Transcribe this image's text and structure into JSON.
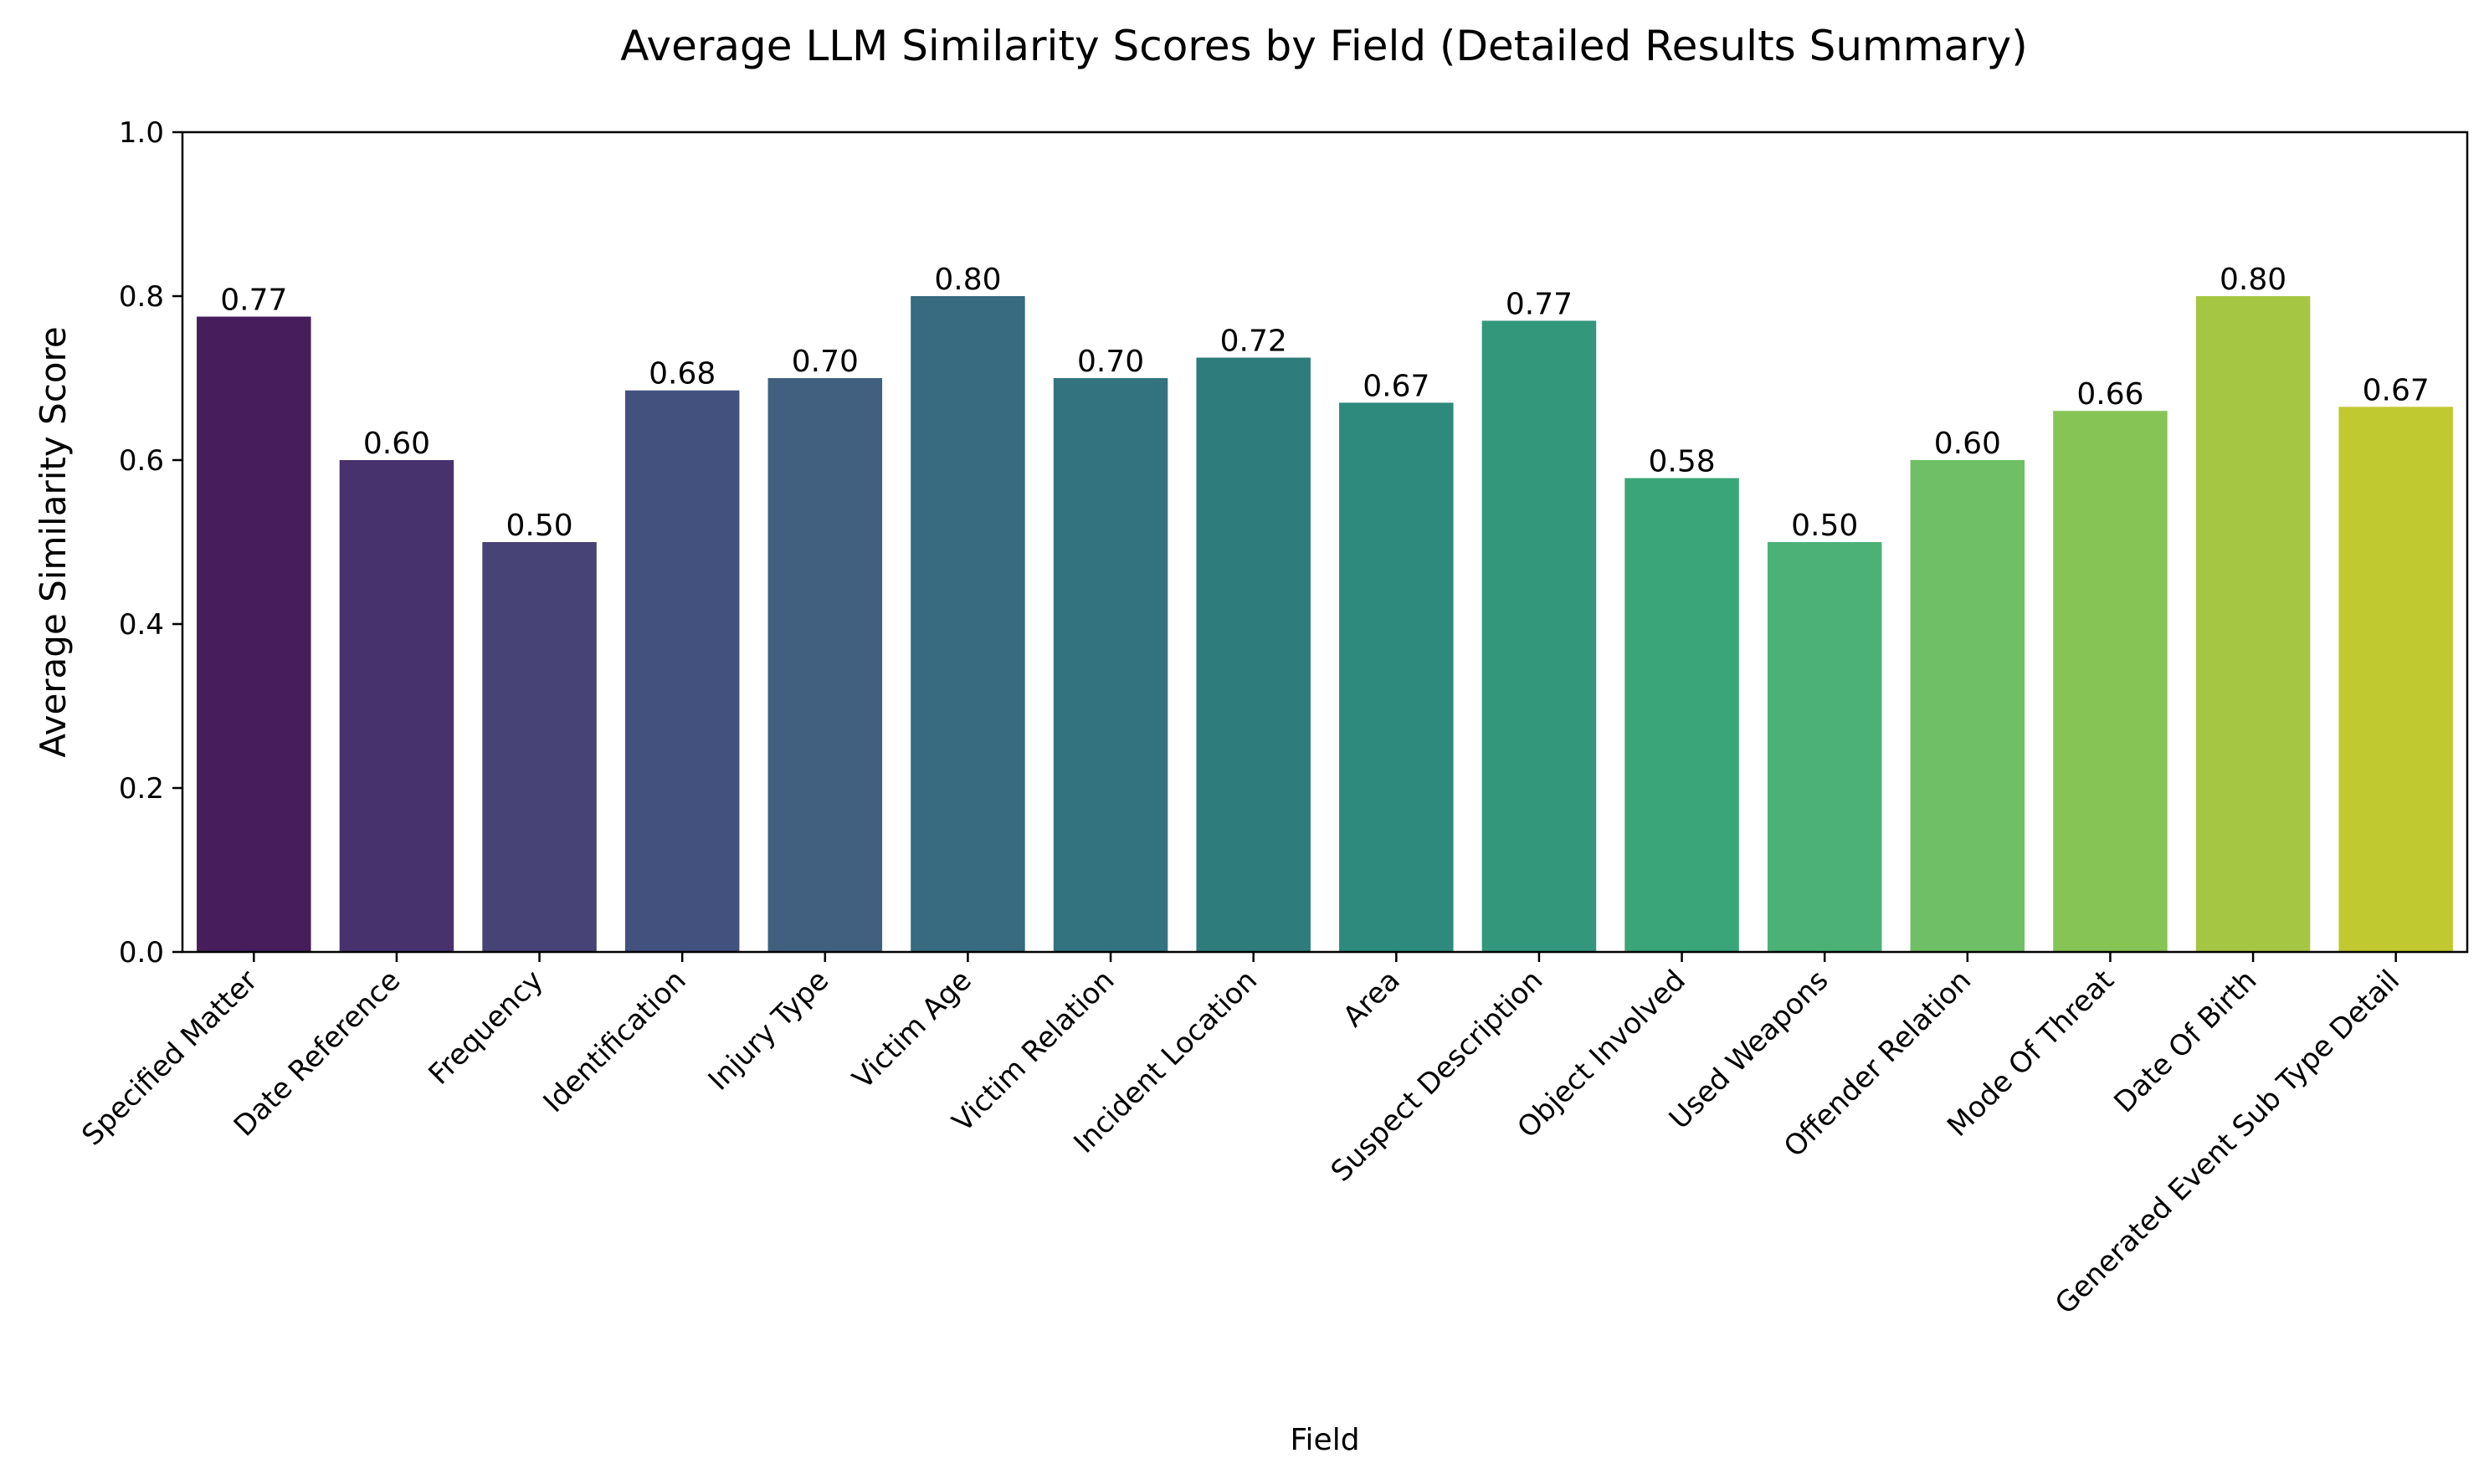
{
  "chart_data": {
    "type": "bar",
    "title": "Average LLM Similarity Scores by Field (Detailed Results Summary)",
    "xlabel": "Field",
    "ylabel": "Average Similarity Score",
    "ylim": [
      0,
      1.0
    ],
    "yticks": [
      "0.0",
      "0.2",
      "0.4",
      "0.6",
      "0.8",
      "1.0"
    ],
    "grid": false,
    "legend": "none",
    "categories": [
      "Specified Matter",
      "Date Reference",
      "Frequency",
      "Identification",
      "Injury Type",
      "Victim Age",
      "Victim Relation",
      "Incident Location",
      "Area",
      "Suspect Description",
      "Object Involved",
      "Used Weapons",
      "Offender Relation",
      "Mode Of Threat",
      "Date Of Birth",
      "Generated Event Sub Type Detail"
    ],
    "values": [
      0.775,
      0.6,
      0.5,
      0.685,
      0.7,
      0.8,
      0.7,
      0.725,
      0.67,
      0.77,
      0.578,
      0.5,
      0.6,
      0.66,
      0.8,
      0.665
    ],
    "value_labels": [
      "0.77",
      "0.60",
      "0.50",
      "0.68",
      "0.70",
      "0.80",
      "0.70",
      "0.72",
      "0.67",
      "0.77",
      "0.58",
      "0.50",
      "0.60",
      "0.66",
      "0.80",
      "0.67"
    ],
    "colors": [
      "#471d5b",
      "#48326e",
      "#484376",
      "#43517e",
      "#41607f",
      "#386a80",
      "#33737f",
      "#2e7c7c",
      "#2d8a7d",
      "#33977c",
      "#3ba57a",
      "#4cb177",
      "#6fbf66",
      "#86c456",
      "#a5c642",
      "#c1c931"
    ]
  }
}
